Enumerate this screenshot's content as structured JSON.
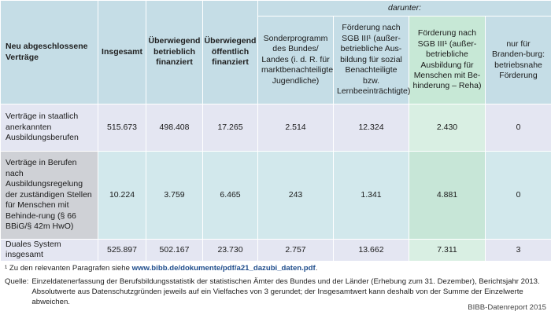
{
  "table": {
    "header": {
      "row_label": "Neu abgeschlossene Verträge",
      "insgesamt": "Insgesamt",
      "betrieblich": "Überwiegend betrieblich finanziert",
      "oeffentlich": "Überwiegend öffentlich finanziert",
      "darunter": "darunter:",
      "sub": [
        "Sonderprogramm des Bundes/ Landes (i. d. R. für marktbenachteiligte Jugendliche)",
        "Förderung nach SGB III¹ (außer-betriebliche Aus-bildung für sozial Benachteiligte bzw. Lernbeeinträchtigte)",
        "Förderung nach SGB III¹ (außer-betriebliche Ausbildung für Menschen mit Be-hinderung – Reha)",
        "nur für Branden-burg: betriebsnahe Förderung"
      ]
    },
    "rows": [
      {
        "label": "Verträge in staatlich anerkannten Ausbildungsberufen",
        "insgesamt": "515.673",
        "betrieblich": "498.408",
        "oeffentlich": "17.265",
        "sonder": "2.514",
        "sgb_sozial": "12.324",
        "sgb_reha": "2.430",
        "brandenburg": "0"
      },
      {
        "label": "Verträge in Berufen nach Ausbildungsregelung der zuständigen Stellen für Menschen mit Behinde-rung (§ 66 BBiG/§ 42m HwO)",
        "insgesamt": "10.224",
        "betrieblich": "3.759",
        "oeffentlich": "6.465",
        "sonder": "243",
        "sgb_sozial": "1.341",
        "sgb_reha": "4.881",
        "brandenburg": "0"
      },
      {
        "label": "Duales System insgesamt",
        "insgesamt": "525.897",
        "betrieblich": "502.167",
        "oeffentlich": "23.730",
        "sonder": "2.757",
        "sgb_sozial": "13.662",
        "sgb_reha": "7.311",
        "brandenburg": "3"
      }
    ]
  },
  "notes": {
    "footnote_prefix": "¹ Zu den relevanten Paragrafen siehe ",
    "footnote_link": "www.bibb.de/dokumente/pdf/a21_dazubi_daten.pdf",
    "footnote_suffix": ".",
    "source_label": "Quelle:",
    "source_text": "Einzeldatenerfassung der Berufsbildungsstatistik der statistischen Ämter des Bundes und der Länder (Erhebung zum 31. Dezember), Berichtsjahr 2013. Absolutwerte aus Datenschutzgründen jeweils auf ein Vielfaches von 3 gerundet; der Insgesamtwert kann deshalb von der Summe der Einzelwerte abweichen.",
    "credit": "BIBB-Datenreport 2015"
  }
}
